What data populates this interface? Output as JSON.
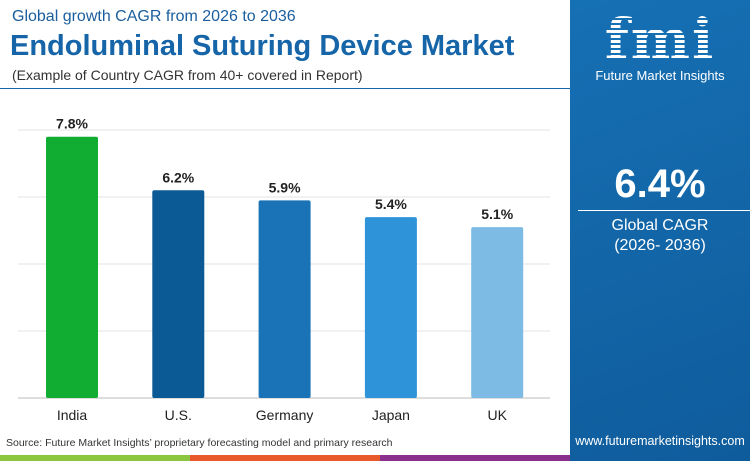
{
  "header": {
    "subtitle_top": "Global growth CAGR from 2026 to 2036",
    "title": "Endoluminal Suturing Device Market",
    "note": "(Example of Country CAGR from 40+ covered in Report)"
  },
  "panel": {
    "logo_text": "fmi",
    "brand": "Future Market Insights",
    "cagr_value": "6.4%",
    "cagr_label": "Global CAGR",
    "cagr_period": "(2026- 2036)",
    "url": "www.futuremarketinsights.com"
  },
  "footer": {
    "source": "Source: Future Market Insights’ proprietary forecasting model and primary research",
    "stripe_colors": [
      "#8cc63f",
      "#e8582a",
      "#8b2f8c"
    ]
  },
  "chart_data": {
    "type": "bar",
    "categories": [
      "India",
      "U.S.",
      "Germany",
      "Japan",
      "UK"
    ],
    "values": [
      7.8,
      6.2,
      5.9,
      5.4,
      5.1
    ],
    "data_labels": [
      "7.8%",
      "6.2%",
      "5.9%",
      "5.4%",
      "5.1%"
    ],
    "colors": [
      "#11ad32",
      "#0b5a96",
      "#1a73b6",
      "#2f93d9",
      "#7dbbe4"
    ],
    "ylim": [
      0,
      8
    ],
    "grid": true,
    "unit": "%"
  }
}
